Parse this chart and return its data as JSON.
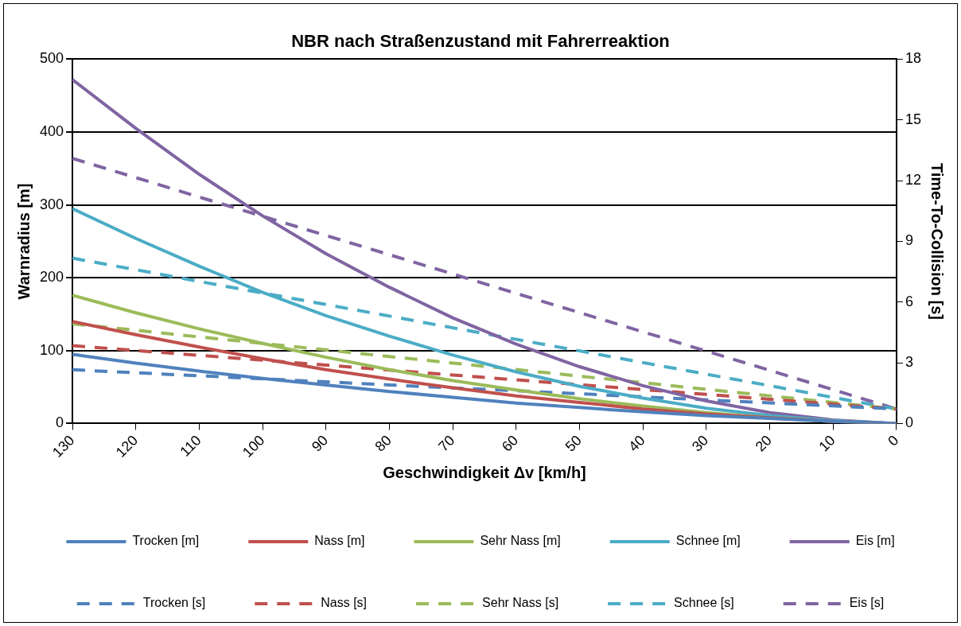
{
  "chart_data": {
    "type": "line",
    "title": "NBR nach Straßenzustand mit Fahrerreaktion",
    "xlabel": "Geschwindigkeit Δv [km/h]",
    "ylabel": "Warnradius [m]",
    "y2label": "Time-To-Collision [s]",
    "x": [
      130,
      120,
      110,
      100,
      90,
      80,
      70,
      60,
      50,
      40,
      30,
      20,
      10,
      0
    ],
    "xlim": [
      130,
      0
    ],
    "xticks": [
      130,
      120,
      110,
      100,
      90,
      80,
      70,
      60,
      50,
      40,
      30,
      20,
      10,
      0
    ],
    "ylim": [
      0,
      500
    ],
    "yticks": [
      0,
      100,
      200,
      300,
      400,
      500
    ],
    "y2lim": [
      0,
      18
    ],
    "y2ticks": [
      0,
      3,
      6,
      9,
      12,
      15,
      18
    ],
    "grid": "y",
    "legend": "bottom",
    "marker": "none",
    "series": [
      {
        "name": "Trocken [m]",
        "color": "#4f81bd",
        "line_style": "solid",
        "values": [
          95,
          83,
          72,
          62,
          53,
          44,
          36,
          28,
          22,
          16,
          11,
          7,
          3,
          0
        ]
      },
      {
        "name": "Nass [m]",
        "color": "#c0504d",
        "line_style": "solid",
        "values": [
          140,
          122,
          105,
          89,
          74,
          61,
          49,
          38,
          29,
          20,
          13,
          8,
          3,
          0
        ]
      },
      {
        "name": "Sehr Nass [m]",
        "color": "#9bbb59",
        "line_style": "solid",
        "values": [
          176,
          152,
          130,
          110,
          91,
          74,
          59,
          46,
          34,
          24,
          15,
          8,
          3,
          0
        ]
      },
      {
        "name": "Schnee [m]",
        "color": "#4bacc6",
        "line_style": "solid",
        "values": [
          295,
          254,
          216,
          180,
          148,
          120,
          94,
          71,
          51,
          35,
          21,
          11,
          4,
          0
        ]
      },
      {
        "name": "Eis [m]",
        "color": "#8064a2",
        "line_style": "solid",
        "values": [
          472,
          405,
          342,
          285,
          233,
          187,
          145,
          109,
          78,
          52,
          31,
          15,
          5,
          0
        ]
      },
      {
        "name": "Trocken [s]",
        "color": "#4f81bd",
        "line_style": "dashed",
        "axis": "y2",
        "values": [
          2.66,
          2.51,
          2.36,
          2.21,
          2.06,
          1.91,
          1.76,
          1.62,
          1.47,
          1.32,
          1.17,
          1.02,
          0.87,
          0.72
        ]
      },
      {
        "name": "Nass [s]",
        "color": "#c0504d",
        "line_style": "dashed",
        "axis": "y2",
        "values": [
          3.85,
          3.61,
          3.37,
          3.13,
          2.89,
          2.64,
          2.4,
          2.16,
          1.92,
          1.68,
          1.44,
          1.2,
          0.96,
          0.72
        ]
      },
      {
        "name": "Sehr Nass [s]",
        "color": "#9bbb59",
        "line_style": "dashed",
        "axis": "y2",
        "values": [
          4.93,
          4.61,
          4.28,
          3.96,
          3.64,
          3.31,
          2.99,
          2.67,
          2.34,
          2.02,
          1.69,
          1.37,
          1.04,
          0.72
        ]
      },
      {
        "name": "Schnee [s]",
        "color": "#4bacc6",
        "line_style": "dashed",
        "axis": "y2",
        "values": [
          8.17,
          7.6,
          7.02,
          6.45,
          5.88,
          5.31,
          4.73,
          4.16,
          3.59,
          3.01,
          2.44,
          1.87,
          1.29,
          0.72
        ]
      },
      {
        "name": "Eis [s]",
        "color": "#8064a2",
        "line_style": "dashed",
        "axis": "y2",
        "values": [
          13.1,
          12.15,
          11.19,
          10.24,
          9.29,
          8.34,
          7.39,
          6.43,
          5.48,
          4.53,
          3.58,
          2.63,
          1.67,
          0.72
        ]
      }
    ]
  }
}
